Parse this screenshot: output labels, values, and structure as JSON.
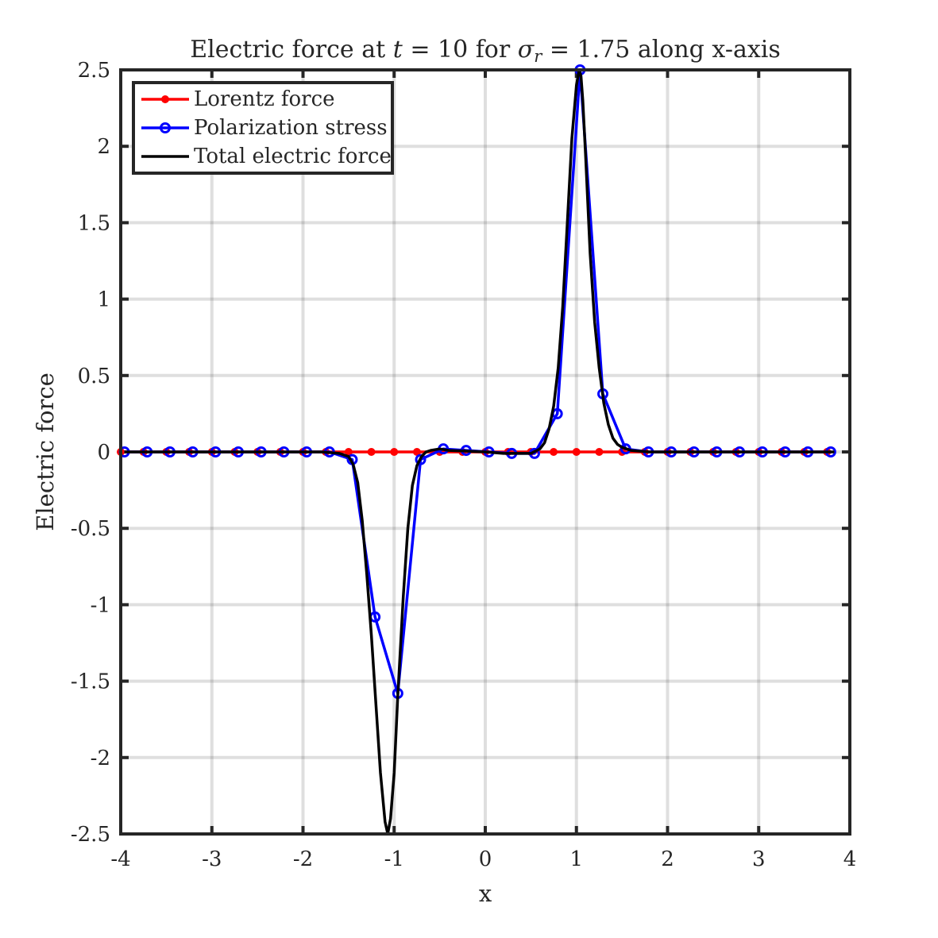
{
  "chart_data": {
    "type": "line",
    "title": "Electric force at t = 10 for σr = 1.75 along x-axis",
    "title_parts": {
      "pre": "Electric force at ",
      "t_var": "t",
      "eq_10": " = 10 for ",
      "sigma": "σ",
      "sub_r": "r",
      "eq_val": " = 1.75 along x-axis"
    },
    "xlabel": "x",
    "ylabel": "Electric force",
    "xlim": [
      -4,
      4
    ],
    "ylim": [
      -2.5,
      2.5
    ],
    "xticks": [
      -4,
      -3,
      -2,
      -1,
      0,
      1,
      2,
      3,
      4
    ],
    "yticks": [
      -2.5,
      -2,
      -1.5,
      -1,
      -0.5,
      0,
      0.5,
      1,
      1.5,
      2,
      2.5
    ],
    "grid": true,
    "legend_position": "top-left",
    "series": [
      {
        "name": "Lorentz force",
        "color": "#ff0000",
        "marker": "dot",
        "x": [
          -4.0,
          -3.75,
          -3.5,
          -3.25,
          -3.0,
          -2.75,
          -2.5,
          -2.25,
          -2.0,
          -1.75,
          -1.5,
          -1.25,
          -1.0,
          -0.75,
          -0.5,
          -0.25,
          0.0,
          0.25,
          0.5,
          0.75,
          1.0,
          1.25,
          1.5,
          1.75,
          2.0,
          2.25,
          2.5,
          2.75,
          3.0,
          3.25,
          3.5,
          3.75
        ],
        "y": [
          0,
          0,
          0,
          0,
          0,
          0,
          0,
          0,
          0,
          0,
          0,
          0,
          0,
          0,
          0,
          0,
          0,
          0,
          0,
          0,
          0,
          0,
          0,
          0,
          0,
          0,
          0,
          0,
          0,
          0,
          0,
          0
        ]
      },
      {
        "name": "Polarization stress",
        "color": "#0000ff",
        "marker": "circle",
        "x": [
          -3.96,
          -3.71,
          -3.46,
          -3.21,
          -2.96,
          -2.71,
          -2.46,
          -2.21,
          -1.96,
          -1.71,
          -1.46,
          -1.21,
          -0.96,
          -0.71,
          -0.46,
          -0.21,
          0.04,
          0.29,
          0.54,
          0.79,
          1.04,
          1.29,
          1.54,
          1.79,
          2.04,
          2.29,
          2.54,
          2.79,
          3.04,
          3.29,
          3.54,
          3.79
        ],
        "y": [
          0,
          0,
          0,
          0,
          0,
          0,
          0,
          0,
          0,
          0,
          -0.05,
          -1.08,
          -1.58,
          -0.05,
          0.02,
          0.01,
          0,
          -0.01,
          -0.01,
          0.25,
          2.5,
          0.38,
          0.02,
          0,
          0,
          0,
          0,
          0,
          0,
          0,
          0,
          0
        ]
      },
      {
        "name": "Total electric force",
        "color": "#000000",
        "marker": "none",
        "x": [
          -3.96,
          -1.8,
          -1.6,
          -1.5,
          -1.45,
          -1.4,
          -1.35,
          -1.3,
          -1.25,
          -1.2,
          -1.15,
          -1.1,
          -1.07,
          -1.04,
          -1.0,
          -0.96,
          -0.9,
          -0.85,
          -0.8,
          -0.75,
          -0.7,
          -0.65,
          -0.6,
          -0.5,
          -0.4,
          -0.2,
          0.0,
          0.2,
          0.4,
          0.5,
          0.6,
          0.65,
          0.7,
          0.75,
          0.8,
          0.85,
          0.9,
          0.95,
          1.0,
          1.03,
          1.05,
          1.07,
          1.1,
          1.15,
          1.2,
          1.25,
          1.3,
          1.35,
          1.4,
          1.45,
          1.5,
          1.6,
          1.8,
          2.2,
          3.0,
          3.83
        ],
        "y": [
          0,
          0,
          -0.01,
          -0.03,
          -0.08,
          -0.2,
          -0.45,
          -0.8,
          -1.2,
          -1.65,
          -2.1,
          -2.42,
          -2.5,
          -2.4,
          -2.1,
          -1.6,
          -0.95,
          -0.5,
          -0.22,
          -0.09,
          -0.03,
          0,
          0.01,
          0.02,
          0.01,
          0.005,
          0,
          -0.01,
          -0.01,
          -0.01,
          0.02,
          0.06,
          0.15,
          0.3,
          0.55,
          0.95,
          1.5,
          2.05,
          2.4,
          2.5,
          2.46,
          2.3,
          1.95,
          1.3,
          0.85,
          0.55,
          0.32,
          0.18,
          0.09,
          0.05,
          0.03,
          0.01,
          0,
          0,
          0,
          0
        ]
      }
    ]
  }
}
